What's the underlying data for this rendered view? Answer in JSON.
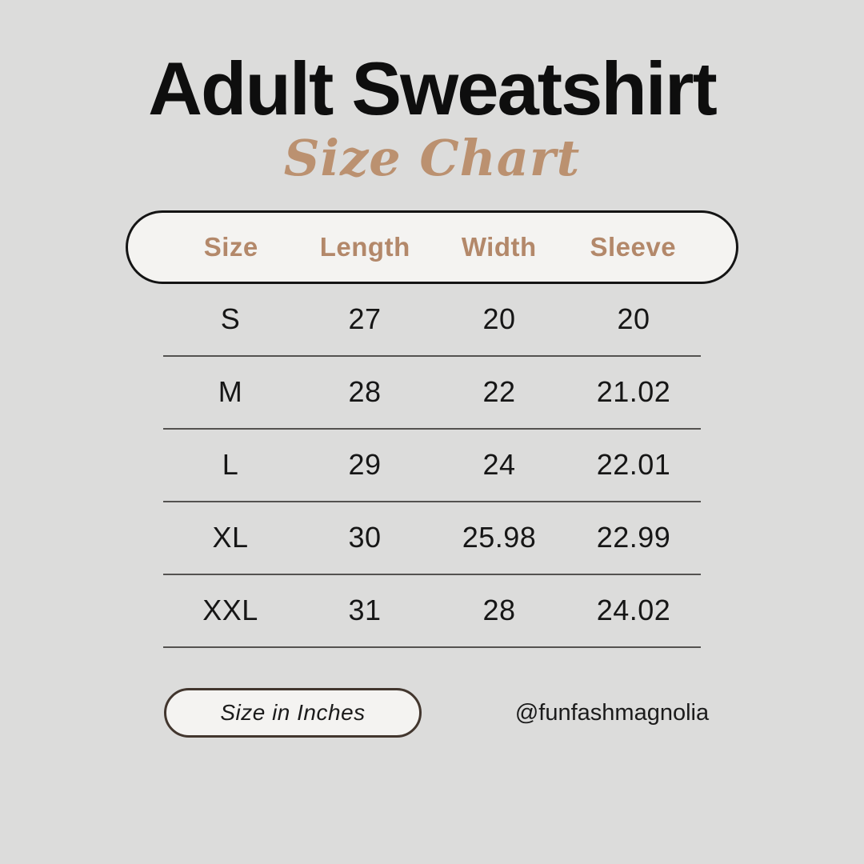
{
  "page": {
    "title": "Adult Sweatshirt",
    "subtitle": "Size Chart"
  },
  "table": {
    "headers": [
      "Size",
      "Length",
      "Width",
      "Sleeve"
    ],
    "rows": [
      {
        "size": "S",
        "length": "27",
        "width": "20",
        "sleeve": "20"
      },
      {
        "size": "M",
        "length": "28",
        "width": "22",
        "sleeve": "21.02"
      },
      {
        "size": "L",
        "length": "29",
        "width": "24",
        "sleeve": "22.01"
      },
      {
        "size": "XL",
        "length": "30",
        "width": "25.98",
        "sleeve": "22.99"
      },
      {
        "size": "XXL",
        "length": "31",
        "width": "28",
        "sleeve": "24.02"
      }
    ]
  },
  "footer": {
    "unit_label": "Size in Inches",
    "handle": "@funfashmagnolia"
  },
  "colors": {
    "background": "#dcdcdb",
    "accent_tan": "#b3886a",
    "pill_fill": "#f4f3f1",
    "pill_border_dark": "#141414",
    "badge_border_brown": "#42362e",
    "text_black": "#0e0e0e",
    "divider": "#545250"
  },
  "chart_data": {
    "type": "table",
    "title": "Adult Sweatshirt Size Chart",
    "columns": [
      "Size",
      "Length",
      "Width",
      "Sleeve"
    ],
    "rows": [
      [
        "S",
        27,
        20,
        20
      ],
      [
        "M",
        28,
        22,
        21.02
      ],
      [
        "L",
        29,
        24,
        22.01
      ],
      [
        "XL",
        30,
        25.98,
        22.99
      ],
      [
        "XXL",
        31,
        28,
        24.02
      ]
    ],
    "units": "inches"
  }
}
